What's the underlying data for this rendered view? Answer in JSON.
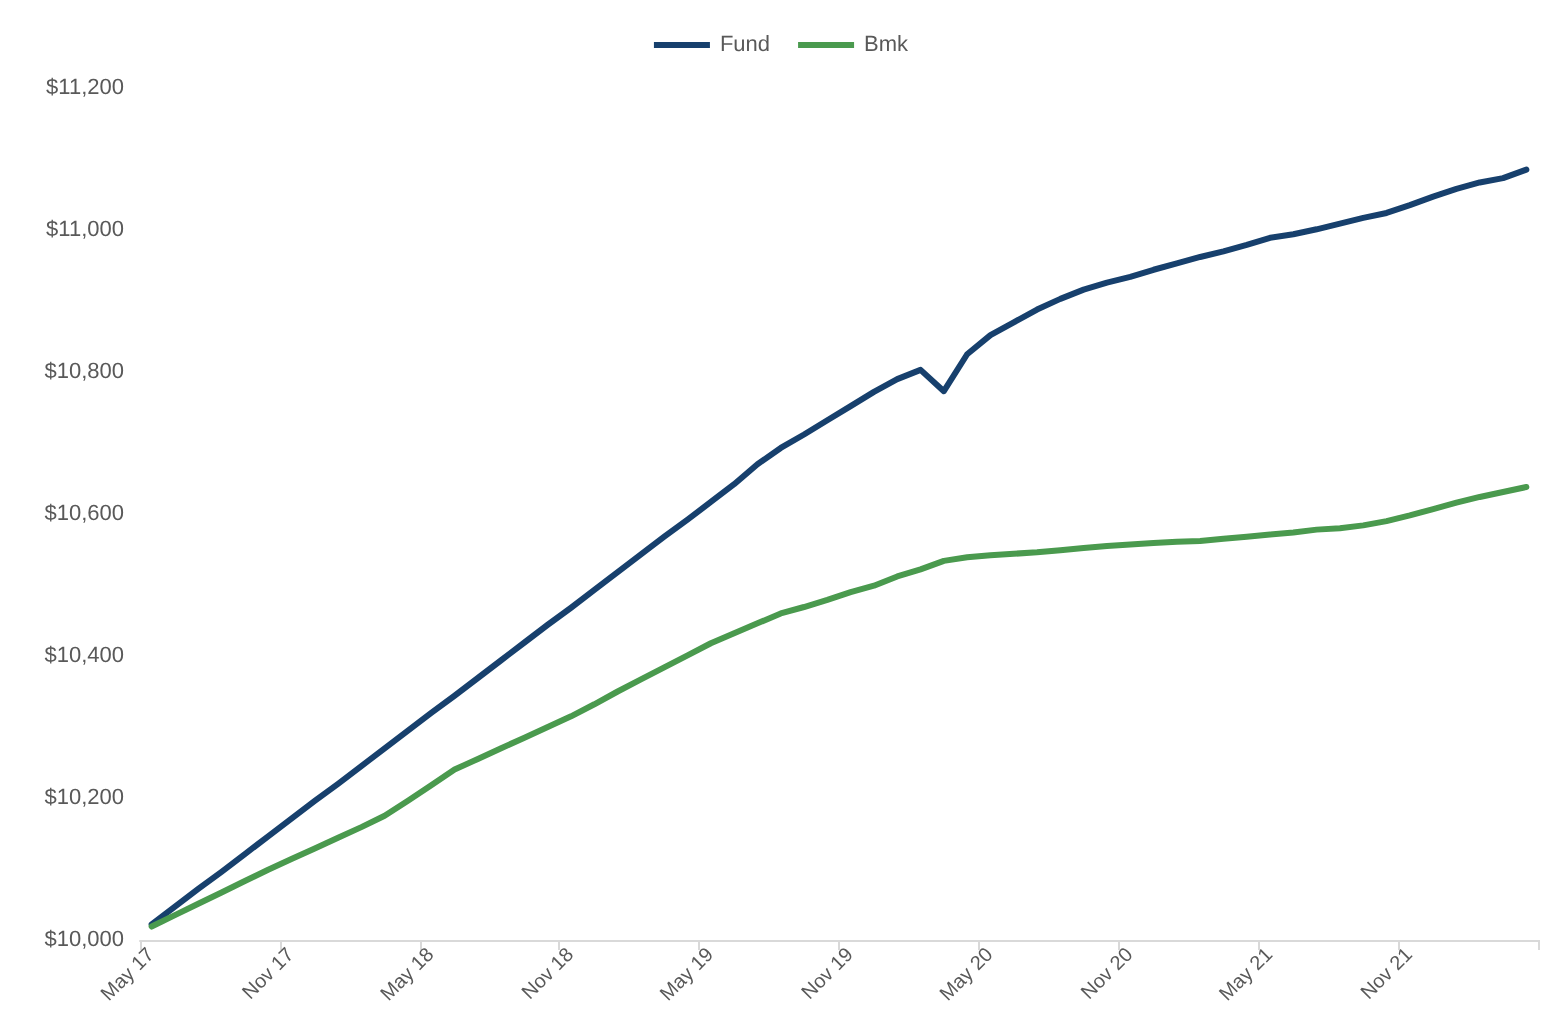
{
  "chart_data": {
    "type": "line",
    "categories": [
      "May 17",
      null,
      null,
      null,
      null,
      null,
      "Nov 17",
      null,
      null,
      null,
      null,
      null,
      "May 18",
      null,
      null,
      null,
      null,
      null,
      "Nov 18",
      null,
      null,
      null,
      null,
      null,
      "May 19",
      null,
      null,
      null,
      null,
      null,
      "Nov 19",
      null,
      null,
      null,
      null,
      null,
      "May 20",
      null,
      null,
      null,
      null,
      null,
      "Nov 20",
      null,
      null,
      null,
      null,
      null,
      "May 21",
      null,
      null,
      null,
      null,
      null,
      "Nov 21",
      null,
      null,
      null,
      null,
      null
    ],
    "series": [
      {
        "name": "Fund",
        "color": "#17406d",
        "values": [
          10022,
          10047,
          10072,
          10096,
          10121,
          10146,
          10171,
          10196,
          10220,
          10245,
          10270,
          10295,
          10320,
          10344,
          10369,
          10394,
          10419,
          10444,
          10468,
          10493,
          10518,
          10543,
          10568,
          10592,
          10617,
          10642,
          10670,
          10693,
          10712,
          10732,
          10752,
          10772,
          10790,
          10803,
          10773,
          10825,
          10852,
          10870,
          10888,
          10903,
          10916,
          10926,
          10934,
          10944,
          10953,
          10962,
          10970,
          10979,
          10989,
          10994,
          11001,
          11009,
          11017,
          11024,
          11035,
          11047,
          11058,
          11067,
          11073,
          11085
        ]
      },
      {
        "name": "Bmk",
        "color": "#4a9a4e",
        "values": [
          10019,
          10035,
          10051,
          10067,
          10083,
          10099,
          10114,
          10129,
          10144,
          10159,
          10175,
          10196,
          10218,
          10240,
          10255,
          10270,
          10285,
          10300,
          10315,
          10332,
          10350,
          10367,
          10384,
          10401,
          10418,
          10432,
          10446,
          10460,
          10469,
          10479,
          10490,
          10499,
          10512,
          10522,
          10534,
          10539,
          10542,
          10544,
          10546,
          10549,
          10552,
          10555,
          10557,
          10559,
          10561,
          10562,
          10565,
          10568,
          10571,
          10574,
          10578,
          10580,
          10584,
          10590,
          10598,
          10607,
          10616,
          10624,
          10631,
          10638
        ]
      }
    ],
    "ylim": [
      10000,
      11200
    ],
    "yticks": [
      {
        "value": 10000,
        "label": "$10,000"
      },
      {
        "value": 10200,
        "label": "$10,200"
      },
      {
        "value": 10400,
        "label": "$10,400"
      },
      {
        "value": 10600,
        "label": "$10,600"
      },
      {
        "value": 10800,
        "label": "$10,800"
      },
      {
        "value": 11000,
        "label": "$11,000"
      },
      {
        "value": 11200,
        "label": "$11,200"
      }
    ],
    "grid": false,
    "legend": "top",
    "marker": "none",
    "line_style": "solid"
  }
}
